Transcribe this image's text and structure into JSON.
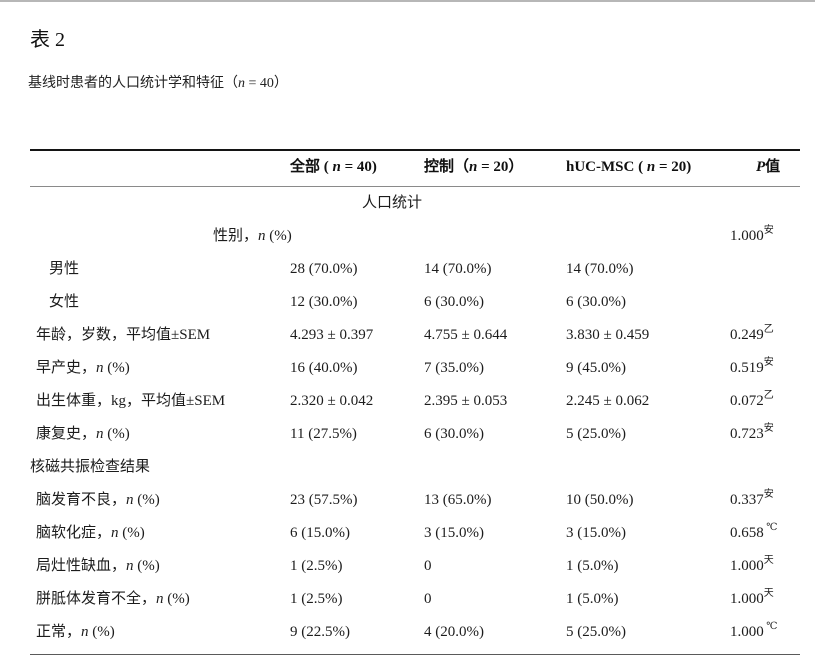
{
  "page": {
    "title": "表 2",
    "subtitle": {
      "pre": "基线时患者的人口统计学和特征（",
      "it": "n",
      "post": " = 40）"
    }
  },
  "table": {
    "header": {
      "label_col": "",
      "cols": [
        {
          "pre": "全部 ( ",
          "it": "n",
          "post": " = 40)"
        },
        {
          "pre": "控制（",
          "it": "n",
          "post": " = 20）"
        },
        {
          "pre": "hUC-MSC ( ",
          "it": "n",
          "post": " = 20)"
        },
        {
          "pre": "",
          "it": "P",
          "post": "值"
        }
      ]
    },
    "rows": [
      {
        "type": "center",
        "label": {
          "pre": "人口统计",
          "it": "",
          "post": ""
        }
      },
      {
        "type": "merged",
        "label": {
          "pre": "性别，",
          "it": "n",
          "post": " (%)"
        },
        "p": "1.000",
        "sup": "安"
      },
      {
        "type": "item",
        "indent": 2,
        "label": {
          "pre": "男性",
          "it": "",
          "post": ""
        },
        "cells": [
          "28 (70.0%)",
          "14 (70.0%)",
          "14 (70.0%)"
        ],
        "p": "",
        "sup": ""
      },
      {
        "type": "item",
        "indent": 2,
        "label": {
          "pre": "女性",
          "it": "",
          "post": ""
        },
        "cells": [
          "12 (30.0%)",
          "6 (30.0%)",
          "6 (30.0%)"
        ],
        "p": "",
        "sup": ""
      },
      {
        "type": "item",
        "indent": 1,
        "label": {
          "pre": "年龄，岁数，平均值±SEM",
          "it": "",
          "post": ""
        },
        "cells": [
          "4.293 ± 0.397",
          "4.755 ± 0.644",
          "3.830 ± 0.459"
        ],
        "p": "0.249",
        "sup": "乙"
      },
      {
        "type": "item",
        "indent": 1,
        "label": {
          "pre": "早产史，",
          "it": "n",
          "post": " (%)"
        },
        "cells": [
          "16 (40.0%)",
          "7 (35.0%)",
          "9 (45.0%)"
        ],
        "p": "0.519",
        "sup": "安"
      },
      {
        "type": "item",
        "indent": 1,
        "label": {
          "pre": "出生体重，kg，平均值±SEM",
          "it": "",
          "post": ""
        },
        "cells": [
          "2.320 ± 0.042",
          "2.395 ± 0.053",
          "2.245 ± 0.062"
        ],
        "p": "0.072",
        "sup": "乙"
      },
      {
        "type": "item",
        "indent": 1,
        "label": {
          "pre": "康复史，",
          "it": "n",
          "post": " (%)"
        },
        "cells": [
          "11 (27.5%)",
          "6 (30.0%)",
          "5 (25.0%)"
        ],
        "p": "0.723",
        "sup": "安"
      },
      {
        "type": "group",
        "label": {
          "pre": "核磁共振检查结果",
          "it": "",
          "post": ""
        }
      },
      {
        "type": "item",
        "indent": 1,
        "label": {
          "pre": "脑发育不良，",
          "it": "n",
          "post": " (%)"
        },
        "cells": [
          "23 (57.5%)",
          "13 (65.0%)",
          "10 (50.0%)"
        ],
        "p": "0.337",
        "sup": "安"
      },
      {
        "type": "item",
        "indent": 1,
        "label": {
          "pre": "脑软化症，",
          "it": "n",
          "post": " (%)"
        },
        "cells": [
          "6 (15.0%)",
          "3 (15.0%)",
          "3 (15.0%)"
        ],
        "p": "0.658",
        "sup": " ℃"
      },
      {
        "type": "item",
        "indent": 1,
        "label": {
          "pre": "局灶性缺血，",
          "it": "n",
          "post": " (%)"
        },
        "cells": [
          "1 (2.5%)",
          "0",
          "1 (5.0%)"
        ],
        "p": "1.000",
        "sup": "天"
      },
      {
        "type": "item",
        "indent": 1,
        "label": {
          "pre": "胼胝体发育不全，",
          "it": "n",
          "post": " (%)"
        },
        "cells": [
          "1 (2.5%)",
          "0",
          "1 (5.0%)"
        ],
        "p": "1.000",
        "sup": "天"
      },
      {
        "type": "item",
        "indent": 1,
        "label": {
          "pre": "正常，",
          "it": "n",
          "post": " (%)"
        },
        "cells": [
          "9 (22.5%)",
          "4 (20.0%)",
          "5 (25.0%)"
        ],
        "p": "1.000",
        "sup": " ℃"
      }
    ]
  }
}
